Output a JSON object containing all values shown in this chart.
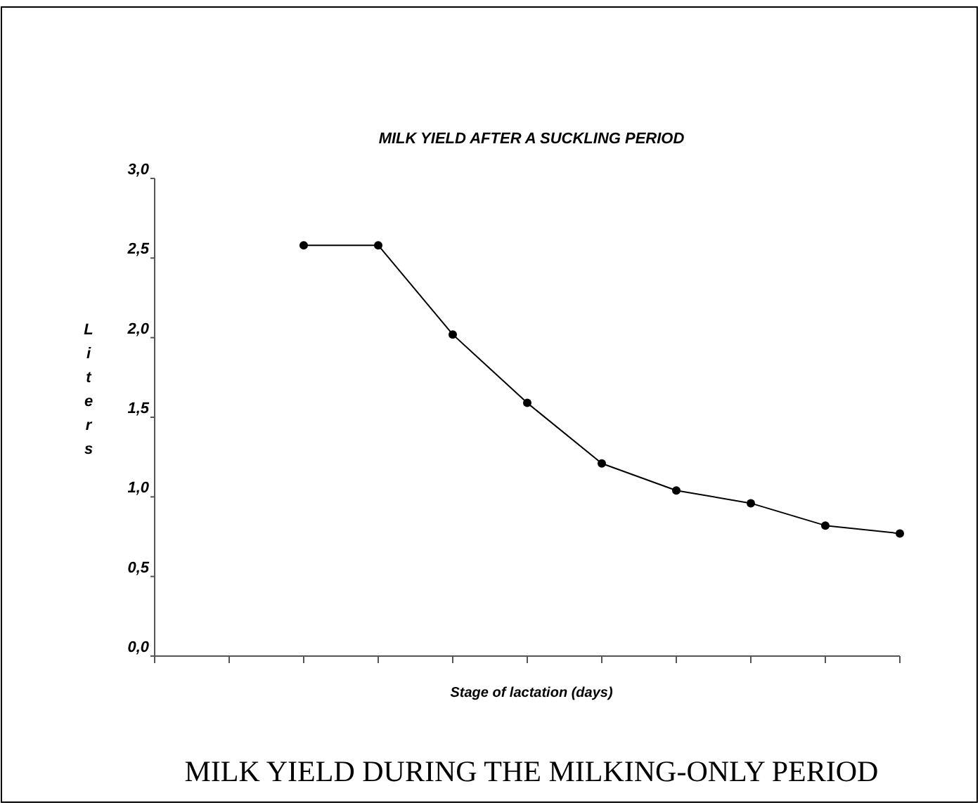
{
  "chart_data": {
    "type": "line",
    "title": "MILK YIELD AFTER A SUCKLING PERIOD",
    "xlabel": "Stage of lactation (days)",
    "ylabel": "Liters",
    "annotations": [
      "MILK YIELD DURING THE MILKING-ONLY PERIOD"
    ],
    "categories": [
      null,
      null,
      null,
      null,
      null,
      null,
      null,
      null,
      null,
      null,
      null
    ],
    "series": [
      {
        "color": "#000000",
        "values": [
          null,
          null,
          2.58,
          2.58,
          2.02,
          1.59,
          1.21,
          1.04,
          0.96,
          0.82,
          0.77
        ]
      }
    ],
    "ylim": [
      0,
      3
    ],
    "yticks": [
      {
        "value": 0,
        "label": "0,0"
      },
      {
        "value": 0.5,
        "label": "0,5"
      },
      {
        "value": 1,
        "label": "1,0"
      },
      {
        "value": 1.5,
        "label": "1,5"
      },
      {
        "value": 2,
        "label": "2,0"
      },
      {
        "value": 2.5,
        "label": "2,5"
      },
      {
        "value": 3,
        "label": "3,0"
      }
    ],
    "grid": false,
    "marker": "circle",
    "line_style": "solid"
  }
}
